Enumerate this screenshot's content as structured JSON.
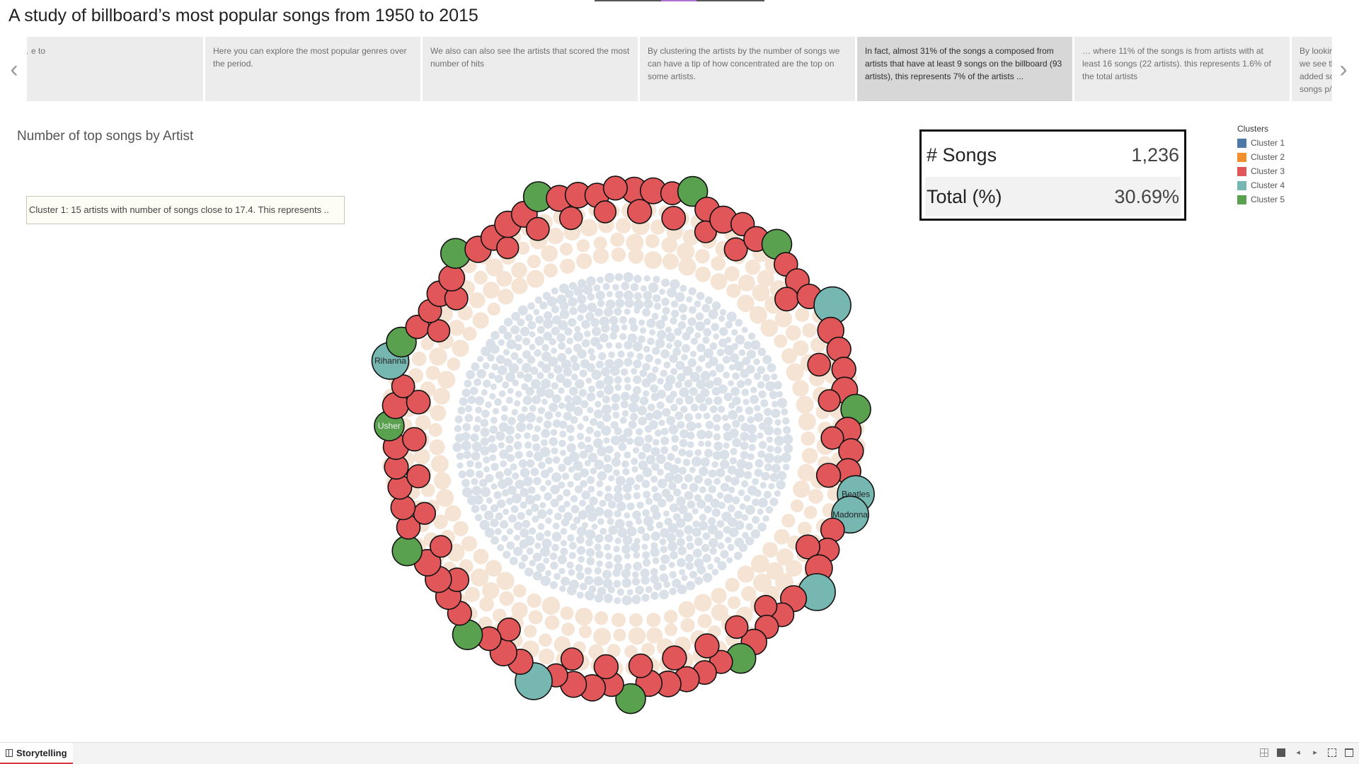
{
  "story": {
    "title": "A study of billboard’s most popular songs from 1950 to 2015"
  },
  "captions": [
    {
      "text": "music … e to",
      "active": false
    },
    {
      "text": "Here you can explore the most popular genres over the period.",
      "active": false
    },
    {
      "text": "We also can also see the artists that scored the most number of hits",
      "active": false
    },
    {
      "text": "By clustering the artists by the number of songs we can have a tip of how concentrated are the top on some artists.",
      "active": false
    },
    {
      "text": "In fact, almost 31% of the songs a composed from artists that have at least 9 songs on the billboard (93 artists), this represents 7% of the artists ...",
      "active": true
    },
    {
      "text": "… where 11% of the songs is from artists with at least 16 songs (22 artists). this represents 1.6% of the total artists",
      "active": false
    },
    {
      "text": "By looking at how the top songs distribute overtime we see that some artists like Madonna and Elvis added songs consistently over the (and also multiple songs p/ year)",
      "active": false
    }
  ],
  "nav": {
    "prev_symbol": "‹",
    "next_symbol": "›"
  },
  "sheet": {
    "title": "Number of top songs by Artist"
  },
  "tooltip": {
    "text": "Cluster 1: 15 artists with number of songs close to 17.4. This represents .."
  },
  "kpi": {
    "songs_label": "# Songs",
    "songs_value": "1,236",
    "total_label": "Total (%)",
    "total_value": "30.69%"
  },
  "legend": {
    "title": "Clusters",
    "items": [
      {
        "label": "Cluster 1",
        "color": "#4e79a7"
      },
      {
        "label": "Cluster 2",
        "color": "#f28e2b"
      },
      {
        "label": "Cluster 3",
        "color": "#e15759"
      },
      {
        "label": "Cluster 4",
        "color": "#76b7b2"
      },
      {
        "label": "Cluster 5",
        "color": "#59a14f"
      }
    ]
  },
  "colors": {
    "cluster3": "#e15759",
    "cluster4": "#76b7b2",
    "cluster5": "#59a14f",
    "faded_outer": "#f5e3d3",
    "faded_inner": "#d9e0e8"
  },
  "chart_data": {
    "type": "scatter",
    "title": "Number of top songs by Artist",
    "encoding": "packed bubbles; bubble size = number of top songs; color = cluster",
    "highlighted_clusters": [
      "Cluster 3",
      "Cluster 4",
      "Cluster 5"
    ],
    "labeled_bubbles": [
      {
        "artist": "Beatles",
        "cluster": "Cluster 4"
      },
      {
        "artist": "Madonna",
        "cluster": "Cluster 4"
      },
      {
        "artist": "Rihanna",
        "cluster": "Cluster 4"
      },
      {
        "artist": "Usher",
        "cluster": "Cluster 5"
      }
    ]
  },
  "bottom_bar": {
    "tab_label": "Storytelling"
  }
}
